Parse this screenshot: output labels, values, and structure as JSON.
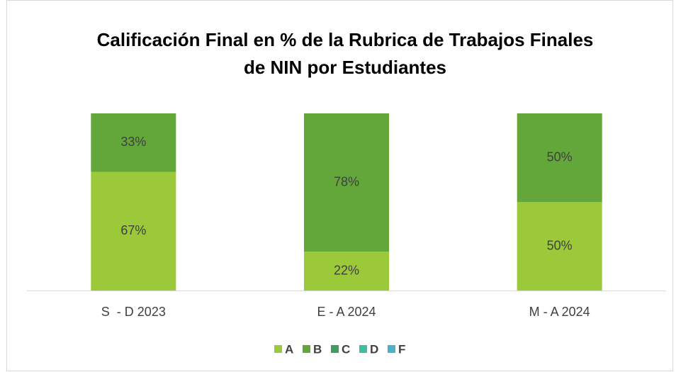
{
  "chart_data": {
    "type": "stacked_bar",
    "title": [
      "Calificación Final en % de la Rubrica de Trabajos Finales",
      "de NIN por Estudiantes"
    ],
    "categories": [
      "S  - D 2023",
      "E - A 2024",
      "M - A 2024"
    ],
    "ylim": [
      0,
      100
    ],
    "legend": "bottom",
    "series": [
      {
        "name": "A",
        "color": "#9bc93a",
        "values": [
          67,
          22,
          50
        ],
        "value_labels": [
          "67%",
          "22%",
          "50%"
        ]
      },
      {
        "name": "B",
        "color": "#63a63a",
        "values": [
          33,
          78,
          50
        ],
        "value_labels": [
          "33%",
          "78%",
          "50%"
        ]
      },
      {
        "name": "C",
        "color": "#3d9e5e",
        "values": [
          0,
          0,
          0
        ]
      },
      {
        "name": "D",
        "color": "#3dbf9f",
        "values": [
          0,
          0,
          0
        ]
      },
      {
        "name": "F",
        "color": "#4bb0cc",
        "values": [
          0,
          0,
          0
        ]
      }
    ]
  }
}
